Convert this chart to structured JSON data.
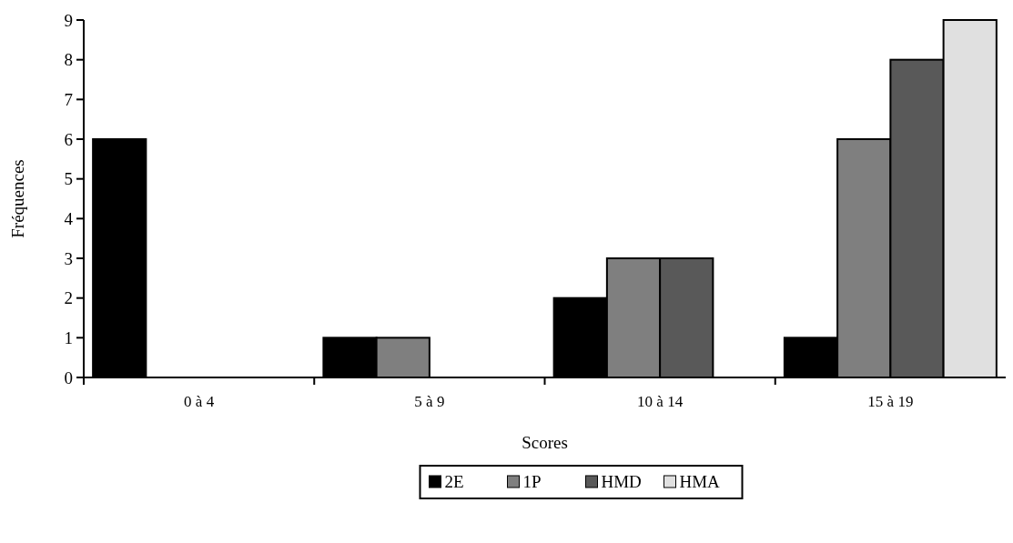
{
  "chart_data": {
    "type": "bar",
    "xlabel": "Scores",
    "ylabel": "Fréquences",
    "categories": [
      "0 à 4",
      "5 à 9",
      "10 à 14",
      "15 à 19"
    ],
    "series": [
      {
        "name": "2E",
        "color": "#000000",
        "values": [
          6,
          1,
          2,
          1
        ]
      },
      {
        "name": "1P",
        "color": "#7f7f7f",
        "values": [
          0,
          1,
          3,
          6
        ]
      },
      {
        "name": "HMD",
        "color": "#595959",
        "values": [
          0,
          0,
          3,
          8
        ]
      },
      {
        "name": "HMA",
        "color": "#e0e0e0",
        "values": [
          0,
          0,
          0,
          9
        ]
      }
    ],
    "ylim": [
      0,
      9
    ],
    "yticks": [
      0,
      1,
      2,
      3,
      4,
      5,
      6,
      7,
      8,
      9
    ],
    "grid": false,
    "legend": "bottom"
  }
}
